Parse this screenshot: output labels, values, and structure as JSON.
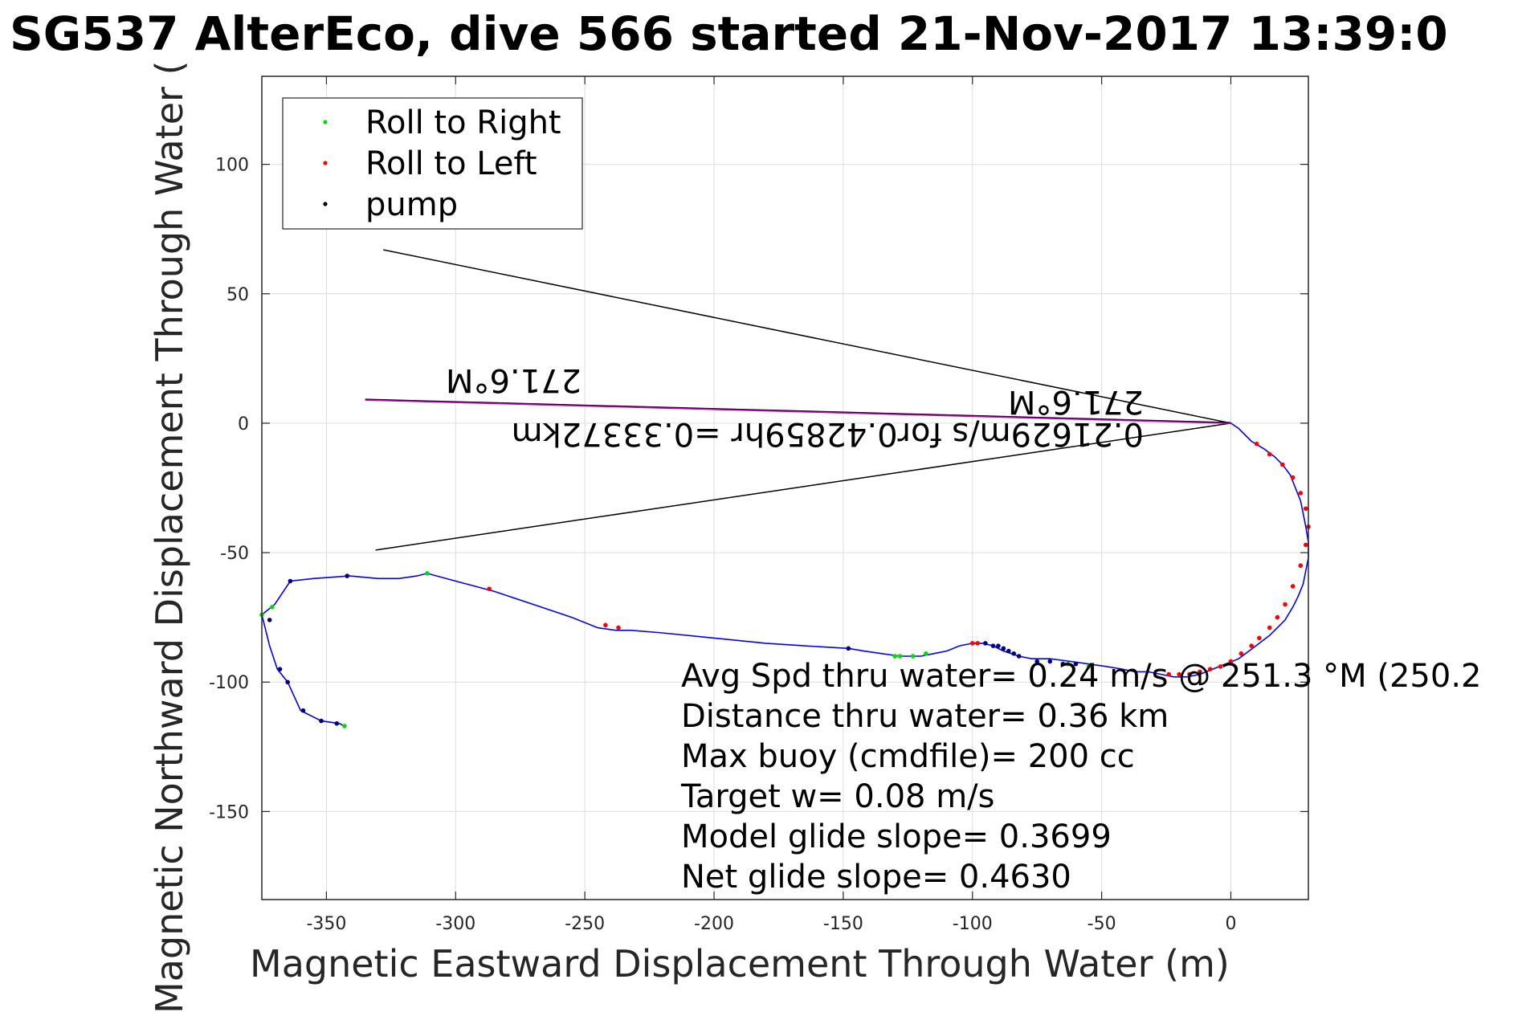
{
  "chart_data": {
    "type": "scatter",
    "title": "SG537 AlterEco, dive 566 started 21-Nov-2017 13:39:0",
    "xlabel": "Magnetic Eastward Displacement Through Water (m)",
    "ylabel": "Magnetic Northward Displacement Through Water (",
    "xlim": [
      -375,
      30
    ],
    "ylim": [
      -184,
      134
    ],
    "xticks": [
      -350,
      -300,
      -250,
      -200,
      -150,
      -100,
      -50,
      0
    ],
    "yticks": [
      100,
      50,
      0,
      -50,
      -100,
      -150
    ],
    "grid": true,
    "legend_position": "top-left",
    "colors": {
      "track": "#0000ff",
      "roll_right": "#00dd00",
      "roll_left": "#ff0000",
      "pump": "#000080",
      "heading": "#cc00cc",
      "wedge": "#000000"
    },
    "legend": [
      {
        "label": "Roll to Right",
        "color": "#00dd00"
      },
      {
        "label": "Roll to Left",
        "color": "#ff0000"
      },
      {
        "label": "pump",
        "color": "#000000"
      }
    ],
    "track": {
      "x": [
        0,
        3,
        8,
        13,
        17,
        20,
        23,
        25,
        27,
        28,
        29,
        30,
        30,
        29,
        28,
        26,
        24,
        21,
        18,
        15,
        11,
        7,
        3,
        -2,
        -7,
        -12,
        -17,
        -22,
        -27,
        -32,
        -37,
        -42,
        -48,
        -55,
        -62,
        -70,
        -77,
        -82,
        -85,
        -88,
        -92,
        -96,
        -100,
        -105,
        -110,
        -115,
        -120,
        -128,
        -135,
        -142,
        -148,
        -165,
        -180,
        -200,
        -220,
        -232,
        -238,
        -245,
        -255,
        -270,
        -285,
        -300,
        -311,
        -315,
        -322,
        -330,
        -341,
        -355,
        -364,
        -370,
        -375,
        -372,
        -369,
        -365,
        -360,
        -352,
        -345,
        -343
      ],
      "y": [
        0,
        -2,
        -7,
        -10,
        -13,
        -16,
        -20,
        -25,
        -30,
        -35,
        -40,
        -46,
        -52,
        -57,
        -62,
        -67,
        -71,
        -76,
        -79,
        -82,
        -85,
        -88,
        -91,
        -93,
        -95,
        -97,
        -98,
        -98,
        -97,
        -96,
        -96,
        -95,
        -94,
        -93,
        -92,
        -91,
        -91,
        -90,
        -89,
        -88,
        -86,
        -85,
        -85,
        -86,
        -88,
        -89,
        -90,
        -90,
        -89,
        -88,
        -87,
        -86,
        -85,
        -83,
        -81,
        -80,
        -80,
        -79,
        -75,
        -70,
        -65,
        -61,
        -58,
        -59,
        -60,
        -60,
        -59,
        -60,
        -61,
        -70,
        -74,
        -86,
        -95,
        -100,
        -111,
        -115,
        -116,
        -117
      ]
    },
    "roll_right": {
      "x": [
        -55,
        -63,
        -130,
        -128,
        -123,
        -118,
        -311,
        -375,
        -371,
        -343
      ],
      "y": [
        -94,
        -93,
        -90,
        -90,
        -90,
        -89,
        -58,
        -74,
        -71,
        -117
      ]
    },
    "roll_left": {
      "x": [
        10,
        15,
        20,
        24,
        27,
        29,
        30,
        29,
        27,
        24,
        21,
        18,
        15,
        11,
        8,
        4,
        0,
        -4,
        -8,
        -12,
        -16,
        -20,
        -24,
        -100,
        -98,
        -242,
        -237,
        -287
      ],
      "y": [
        -8,
        -12,
        -16,
        -21,
        -27,
        -33,
        -40,
        -47,
        -55,
        -63,
        -70,
        -75,
        -79,
        -83,
        -86,
        -89,
        -92,
        -94,
        -95,
        -96,
        -97,
        -97,
        -97,
        -85,
        -85,
        -78,
        -79,
        -64
      ]
    },
    "pump": {
      "x": [
        -95,
        -92,
        -90,
        -88,
        -86,
        -84,
        -82,
        -75,
        -70,
        -65,
        -60,
        -148,
        -342,
        -364,
        -372,
        -368,
        -365,
        -359,
        -352,
        -346
      ],
      "y": [
        -85,
        -86,
        -86,
        -87,
        -88,
        -89,
        -90,
        -92,
        -92,
        -93,
        -93,
        -87,
        -59,
        -61,
        -76,
        -95,
        -100,
        -111,
        -115,
        -116
      ]
    },
    "heading_line": {
      "x": [
        -335,
        0
      ],
      "y": [
        9,
        0
      ]
    },
    "wedge_lines": [
      {
        "x": [
          -328,
          0
        ],
        "y": [
          67,
          0
        ]
      },
      {
        "x": [
          -331,
          0
        ],
        "y": [
          -49,
          0
        ]
      }
    ],
    "annotations": {
      "heading_label_left": "271.6°M",
      "heading_label_right": "271.6°M",
      "speed_label": "0.21629m/s for0.42859hr =0.33372km"
    },
    "stats": [
      "Avg Spd thru water=  0.24 m/s @ 251.3 °M (250.2",
      "Distance thru water=  0.36 km",
      "Max buoy (cmdfile)= 200 cc",
      "Target w= 0.08 m/s",
      "Model glide slope= 0.3699",
      "Net glide slope= 0.4630"
    ]
  }
}
